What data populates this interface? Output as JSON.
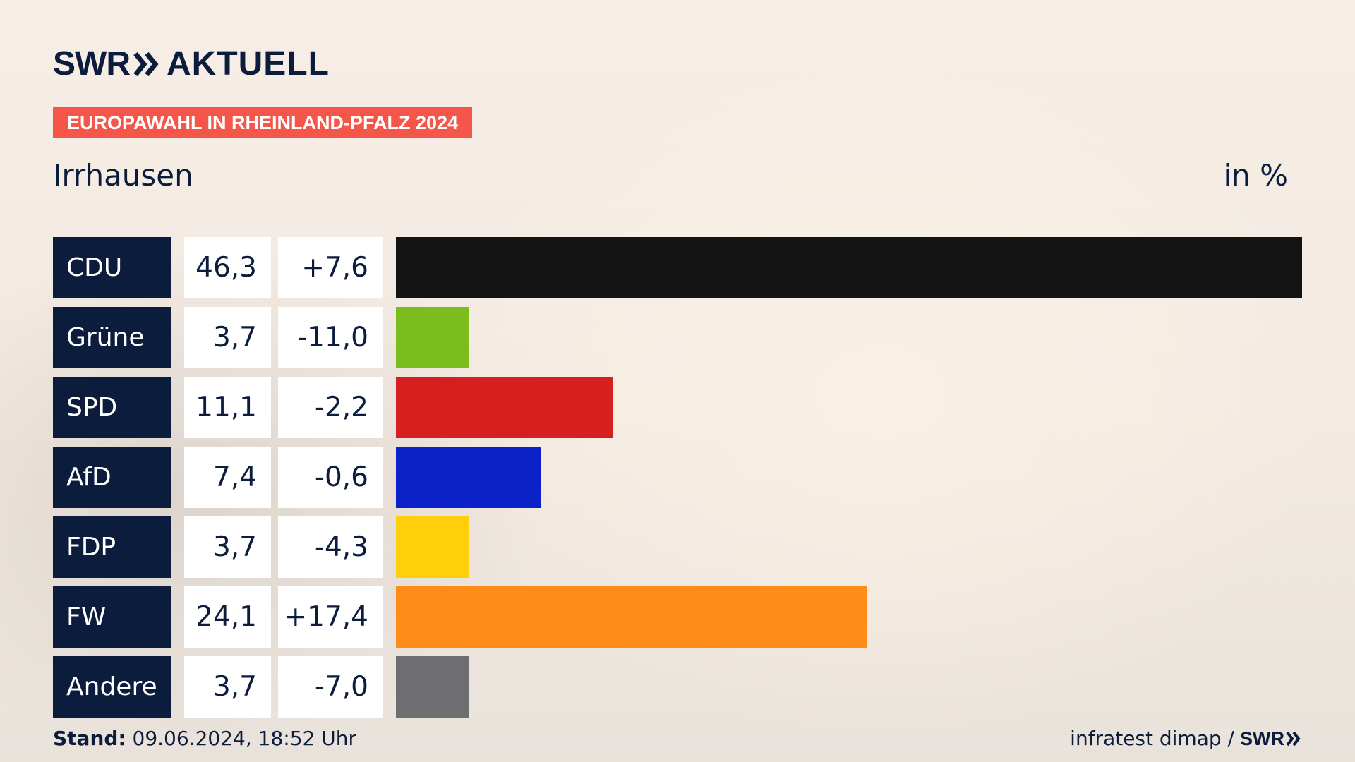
{
  "header": {
    "brand": "SWR",
    "product": "AKTUELL",
    "tag": "EUROPAWAHL IN RHEINLAND-PFALZ 2024",
    "location": "Irrhausen",
    "unit": "in %"
  },
  "footer": {
    "stand_label": "Stand:",
    "stand_value": "09.06.2024, 18:52 Uhr",
    "source": "infratest dimap /",
    "source_brand": "SWR"
  },
  "chart_data": {
    "type": "bar",
    "orientation": "horizontal",
    "title": "Irrhausen",
    "unit": "in %",
    "xlim": [
      0,
      46.3
    ],
    "categories": [
      "CDU",
      "Grüne",
      "SPD",
      "AfD",
      "FDP",
      "FW",
      "Andere"
    ],
    "values": [
      46.3,
      3.7,
      11.1,
      7.4,
      3.7,
      24.1,
      3.7
    ],
    "value_labels": [
      "46,3",
      "3,7",
      "11,1",
      "7,4",
      "3,7",
      "24,1",
      "3,7"
    ],
    "change_labels": [
      "+7,6",
      "-11,0",
      "-2,2",
      "-0,6",
      "-4,3",
      "+17,4",
      "-7,0"
    ],
    "changes": [
      7.6,
      -11.0,
      -2.2,
      -0.6,
      -4.3,
      17.4,
      -7.0
    ],
    "colors": [
      "#141414",
      "#7bbd1c",
      "#d62020",
      "#0a22c8",
      "#ffcf0c",
      "#fd8c18",
      "#6e6e70"
    ]
  }
}
